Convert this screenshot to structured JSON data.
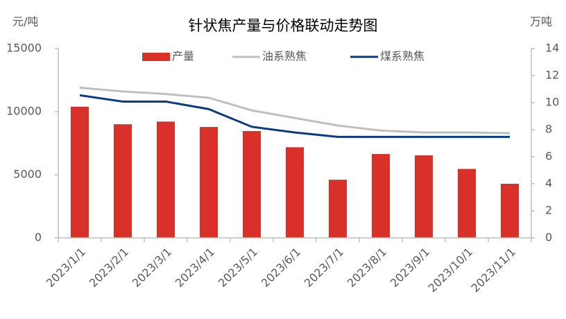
{
  "chart_data": {
    "type": "bar",
    "title": "针状焦产量与价格联动走势图",
    "y_label": "元/吨",
    "y2_label": "万吨",
    "categories": [
      "2023/1/1",
      "2023/2/1",
      "2023/3/1",
      "2023/4/1",
      "2023/5/1",
      "2023/6/1",
      "2023/7/1",
      "2023/8/1",
      "2023/9/1",
      "2023/10/1",
      "2023/11/1"
    ],
    "series": [
      {
        "name": "产量",
        "type": "bar",
        "axis": "y2",
        "color": "#d9302a",
        "values": [
          9.7,
          8.4,
          8.6,
          8.2,
          7.9,
          6.7,
          4.3,
          6.2,
          6.1,
          5.1,
          4.0
        ]
      },
      {
        "name": "油系熟焦",
        "type": "line",
        "color": "#bfbfbf",
        "values": [
          11900,
          11600,
          11400,
          11100,
          10100,
          9500,
          8900,
          8500,
          8350,
          8350,
          8300
        ]
      },
      {
        "name": "煤系熟焦",
        "type": "line",
        "color": "#0b3a82",
        "values": [
          11300,
          10800,
          10800,
          10200,
          8800,
          8350,
          8000,
          8000,
          8000,
          8000,
          8000
        ]
      }
    ],
    "ylim": [
      0,
      15000
    ],
    "yticks": [
      0,
      5000,
      10000,
      15000
    ],
    "y2lim": [
      0,
      14
    ],
    "y2ticks": [
      0,
      2,
      4,
      6,
      8,
      10,
      12,
      14
    ],
    "grid": false,
    "legend": "top"
  }
}
